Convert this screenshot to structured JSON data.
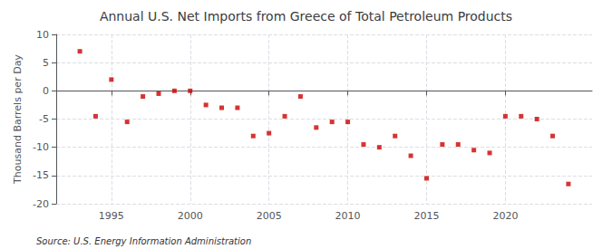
{
  "chart_data": {
    "type": "scatter",
    "title": "Annual U.S. Net Imports from Greece of Total Petroleum Products",
    "ylabel": "Thousand Barrels per Day",
    "annotations": [
      "Source: U.S. Energy Information Administration"
    ],
    "x": [
      1993,
      1994,
      1995,
      1996,
      1997,
      1998,
      1999,
      2000,
      2001,
      2002,
      2003,
      2004,
      2005,
      2006,
      2007,
      2008,
      2009,
      2010,
      2011,
      2012,
      2013,
      2014,
      2015,
      2016,
      2017,
      2018,
      2019,
      2020,
      2021,
      2022,
      2023,
      2024
    ],
    "values": [
      7.0,
      -4.5,
      2.0,
      -5.5,
      -1.0,
      -0.5,
      0.0,
      0.0,
      -2.5,
      -3.0,
      -3.0,
      -8.0,
      -7.5,
      -4.5,
      -1.0,
      -6.5,
      -5.5,
      -5.5,
      -9.5,
      -10.0,
      -8.0,
      -11.5,
      -15.5,
      -9.5,
      -9.5,
      -10.5,
      -11.0,
      -4.5,
      -4.5,
      -5.0,
      -8.0,
      -16.5
    ],
    "color": "#cc0000",
    "marker": "square",
    "xlim": [
      1991.5,
      2025.5
    ],
    "xticks": [
      1995,
      2000,
      2005,
      2010,
      2015,
      2020
    ],
    "ylim": [
      -20,
      10
    ],
    "yticks": [
      -20,
      -15,
      -10,
      -5,
      0,
      5,
      10
    ],
    "grid": true
  }
}
